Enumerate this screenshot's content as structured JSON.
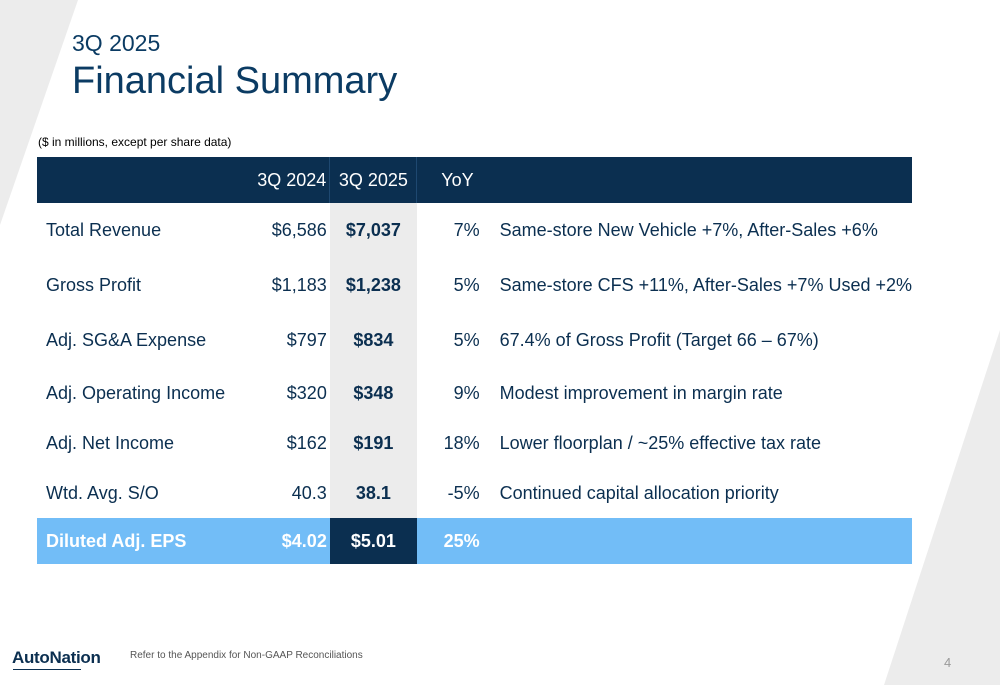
{
  "header": {
    "subtitle": "3Q 2025",
    "title": "Financial Summary"
  },
  "units_note": "($ in millions, except per share data)",
  "table": {
    "columns": [
      "",
      "3Q 2024",
      "3Q 2025",
      "YoY",
      ""
    ],
    "rows": [
      {
        "label": "Total Revenue",
        "q2024": "$6,586",
        "q2025": "$7,037",
        "yoy": "7%",
        "comment": "Same-store New Vehicle +7%, After-Sales +6%"
      },
      {
        "label": "Gross Profit",
        "q2024": "$1,183",
        "q2025": "$1,238",
        "yoy": "5%",
        "comment": "Same-store CFS +11%, After-Sales +7% Used +2%"
      },
      {
        "label": "Adj. SG&A Expense",
        "q2024": "$797",
        "q2025": "$834",
        "yoy": "5%",
        "comment": "67.4% of Gross Profit (Target 66 – 67%)"
      },
      {
        "label": "Adj. Operating Income",
        "q2024": "$320",
        "q2025": "$348",
        "yoy": "9%",
        "comment": "Modest improvement in margin rate"
      },
      {
        "label": "Adj. Net Income",
        "q2024": "$162",
        "q2025": "$191",
        "yoy": "18%",
        "comment": "Lower floorplan / ~25% effective tax rate"
      },
      {
        "label": "Wtd. Avg. S/O",
        "q2024": "40.3",
        "q2025": "38.1",
        "yoy": "-5%",
        "comment": "Continued capital allocation priority"
      }
    ],
    "highlight": {
      "label": "Diluted Adj. EPS",
      "q2024": "$4.02",
      "q2025": "$5.01",
      "yoy": "25%",
      "comment": ""
    }
  },
  "footer": {
    "logo_text": "AutoNation",
    "note": "Refer to the Appendix for Non-GAAP Reconciliations",
    "page_number": "4"
  },
  "colors": {
    "navy": "#0b2f50",
    "highlight_blue": "#72bdf7",
    "column_shade": "#ececec"
  }
}
